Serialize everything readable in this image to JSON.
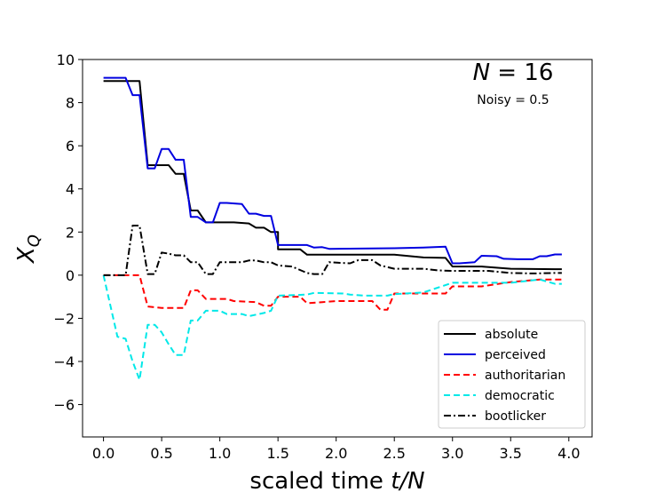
{
  "chart_data": {
    "type": "line",
    "title": "",
    "xlabel": "scaled time t/N",
    "ylabel": "X_Q",
    "xlim": [
      -0.18,
      4.2
    ],
    "ylim": [
      -7.5,
      10
    ],
    "xticks": [
      "0.0",
      "0.5",
      "1.0",
      "1.5",
      "2.0",
      "2.5",
      "3.0",
      "3.5",
      "4.0"
    ],
    "yticks": [
      "−6",
      "−4",
      "−2",
      "0",
      "2",
      "4",
      "6",
      "8",
      "10"
    ],
    "grid": false,
    "legend_position": "lower-right",
    "annotations": [
      {
        "id": "n",
        "prefix": "N",
        "eq": " = ",
        "value": "16"
      },
      {
        "id": "noisy",
        "text": "Noisy  = 0.5"
      }
    ],
    "series": [
      {
        "name": "absolute",
        "color": "#000000",
        "dash": "solid",
        "points": [
          [
            0,
            9
          ],
          [
            0.25,
            9
          ],
          [
            0.31,
            9
          ],
          [
            0.38,
            5.1
          ],
          [
            0.56,
            5.1
          ],
          [
            0.62,
            4.7
          ],
          [
            0.69,
            4.7
          ],
          [
            0.75,
            3
          ],
          [
            0.81,
            3
          ],
          [
            0.88,
            2.45
          ],
          [
            1.12,
            2.45
          ],
          [
            1.25,
            2.4
          ],
          [
            1.31,
            2.2
          ],
          [
            1.38,
            2.2
          ],
          [
            1.44,
            2
          ],
          [
            1.5,
            2
          ],
          [
            1.5,
            1.2
          ],
          [
            1.69,
            1.2
          ],
          [
            1.75,
            0.95
          ],
          [
            2.5,
            0.95
          ],
          [
            2.75,
            0.82
          ],
          [
            2.94,
            0.8
          ],
          [
            3,
            0.4
          ],
          [
            3.25,
            0.4
          ],
          [
            3.5,
            0.3
          ],
          [
            3.88,
            0.28
          ],
          [
            3.94,
            0.28
          ]
        ]
      },
      {
        "name": "perceived",
        "color": "#0000e0",
        "dash": "solid",
        "points": [
          [
            0,
            9.15
          ],
          [
            0.19,
            9.15
          ],
          [
            0.25,
            8.35
          ],
          [
            0.31,
            8.35
          ],
          [
            0.38,
            4.95
          ],
          [
            0.44,
            4.95
          ],
          [
            0.5,
            5.85
          ],
          [
            0.56,
            5.85
          ],
          [
            0.62,
            5.35
          ],
          [
            0.69,
            5.35
          ],
          [
            0.75,
            2.7
          ],
          [
            0.81,
            2.7
          ],
          [
            0.88,
            2.45
          ],
          [
            0.94,
            2.45
          ],
          [
            1,
            3.35
          ],
          [
            1.06,
            3.35
          ],
          [
            1.19,
            3.3
          ],
          [
            1.25,
            2.85
          ],
          [
            1.31,
            2.85
          ],
          [
            1.38,
            2.75
          ],
          [
            1.44,
            2.75
          ],
          [
            1.5,
            1.4
          ],
          [
            1.75,
            1.4
          ],
          [
            1.81,
            1.28
          ],
          [
            1.88,
            1.3
          ],
          [
            1.94,
            1.22
          ],
          [
            2.5,
            1.25
          ],
          [
            2.75,
            1.28
          ],
          [
            2.94,
            1.32
          ],
          [
            3,
            0.55
          ],
          [
            3.06,
            0.55
          ],
          [
            3.19,
            0.6
          ],
          [
            3.25,
            0.9
          ],
          [
            3.38,
            0.88
          ],
          [
            3.44,
            0.76
          ],
          [
            3.56,
            0.74
          ],
          [
            3.69,
            0.74
          ],
          [
            3.75,
            0.88
          ],
          [
            3.81,
            0.88
          ],
          [
            3.88,
            0.96
          ],
          [
            3.94,
            0.96
          ]
        ]
      },
      {
        "name": "authoritarian",
        "color": "#ff0000",
        "dash": "dashed",
        "points": [
          [
            0,
            0
          ],
          [
            0.31,
            0
          ],
          [
            0.38,
            -1.45
          ],
          [
            0.5,
            -1.52
          ],
          [
            0.62,
            -1.52
          ],
          [
            0.69,
            -1.52
          ],
          [
            0.75,
            -0.7
          ],
          [
            0.81,
            -0.7
          ],
          [
            0.88,
            -1.1
          ],
          [
            1.06,
            -1.1
          ],
          [
            1.12,
            -1.2
          ],
          [
            1.31,
            -1.25
          ],
          [
            1.38,
            -1.42
          ],
          [
            1.44,
            -1.42
          ],
          [
            1.5,
            -1
          ],
          [
            1.69,
            -1
          ],
          [
            1.75,
            -1.3
          ],
          [
            1.88,
            -1.25
          ],
          [
            2,
            -1.2
          ],
          [
            2.31,
            -1.2
          ],
          [
            2.38,
            -1.6
          ],
          [
            2.44,
            -1.6
          ],
          [
            2.5,
            -0.85
          ],
          [
            2.94,
            -0.85
          ],
          [
            3,
            -0.52
          ],
          [
            3.25,
            -0.52
          ],
          [
            3.5,
            -0.32
          ],
          [
            3.75,
            -0.2
          ],
          [
            3.94,
            -0.2
          ]
        ]
      },
      {
        "name": "democratic",
        "color": "#00e8e8",
        "dash": "dashed",
        "points": [
          [
            0,
            0
          ],
          [
            0.12,
            -2.85
          ],
          [
            0.19,
            -2.95
          ],
          [
            0.25,
            -4
          ],
          [
            0.31,
            -4.85
          ],
          [
            0.38,
            -2.3
          ],
          [
            0.44,
            -2.3
          ],
          [
            0.5,
            -2.65
          ],
          [
            0.56,
            -3.2
          ],
          [
            0.62,
            -3.7
          ],
          [
            0.69,
            -3.7
          ],
          [
            0.75,
            -2.1
          ],
          [
            0.81,
            -2.1
          ],
          [
            0.88,
            -1.65
          ],
          [
            1,
            -1.65
          ],
          [
            1.06,
            -1.8
          ],
          [
            1.19,
            -1.8
          ],
          [
            1.25,
            -1.9
          ],
          [
            1.38,
            -1.75
          ],
          [
            1.44,
            -1.65
          ],
          [
            1.5,
            -0.95
          ],
          [
            1.75,
            -0.9
          ],
          [
            1.81,
            -0.82
          ],
          [
            2.06,
            -0.85
          ],
          [
            2.12,
            -0.9
          ],
          [
            2.25,
            -0.95
          ],
          [
            2.44,
            -0.95
          ],
          [
            2.5,
            -0.88
          ],
          [
            2.75,
            -0.8
          ],
          [
            3,
            -0.35
          ],
          [
            3.5,
            -0.35
          ],
          [
            3.75,
            -0.2
          ],
          [
            3.88,
            -0.4
          ],
          [
            3.94,
            -0.4
          ]
        ]
      },
      {
        "name": "bootlicker",
        "color": "#000000",
        "dash": "dashdot",
        "points": [
          [
            0,
            0
          ],
          [
            0.19,
            0
          ],
          [
            0.25,
            2.3
          ],
          [
            0.31,
            2.3
          ],
          [
            0.38,
            0.05
          ],
          [
            0.44,
            0.05
          ],
          [
            0.5,
            1.05
          ],
          [
            0.56,
            1
          ],
          [
            0.62,
            0.92
          ],
          [
            0.69,
            0.92
          ],
          [
            0.75,
            0.6
          ],
          [
            0.81,
            0.6
          ],
          [
            0.88,
            0.05
          ],
          [
            0.94,
            0.05
          ],
          [
            1,
            0.6
          ],
          [
            1.19,
            0.6
          ],
          [
            1.25,
            0.68
          ],
          [
            1.31,
            0.68
          ],
          [
            1.38,
            0.6
          ],
          [
            1.44,
            0.6
          ],
          [
            1.5,
            0.45
          ],
          [
            1.62,
            0.4
          ],
          [
            1.75,
            0.1
          ],
          [
            1.81,
            0.05
          ],
          [
            1.88,
            0.05
          ],
          [
            1.94,
            0.6
          ],
          [
            2.12,
            0.55
          ],
          [
            2.19,
            0.7
          ],
          [
            2.31,
            0.7
          ],
          [
            2.38,
            0.45
          ],
          [
            2.5,
            0.3
          ],
          [
            2.62,
            0.3
          ],
          [
            2.75,
            0.3
          ],
          [
            2.88,
            0.22
          ],
          [
            3,
            0.2
          ],
          [
            3.31,
            0.2
          ],
          [
            3.5,
            0.1
          ],
          [
            3.69,
            0.08
          ],
          [
            3.88,
            0.1
          ],
          [
            3.94,
            0.1
          ]
        ]
      }
    ]
  }
}
